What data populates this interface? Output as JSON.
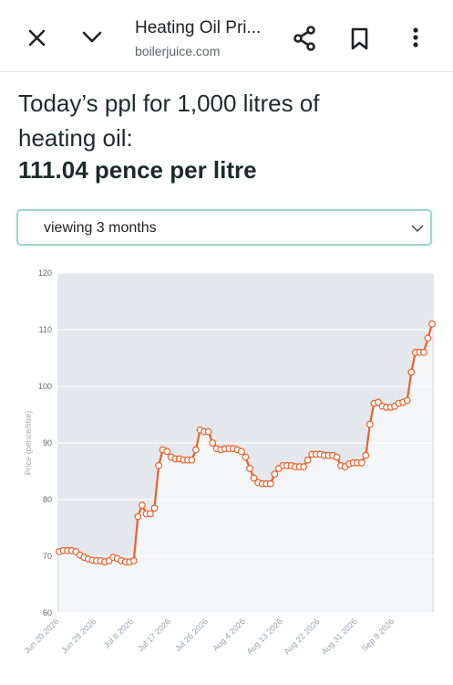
{
  "app_bar": {
    "title": "Heating Oil Pri...",
    "url": "boilerjuice.com"
  },
  "page": {
    "heading": "Today’s ppl for 1,000 litres of heating oil:",
    "price": "111.04 pence per litre",
    "dropdown": "viewing 3 months"
  },
  "chart_data": {
    "type": "line",
    "y_label": "Price (pence/litre)",
    "categories": [
      "Jun 20 2026",
      null,
      null,
      null,
      null,
      null,
      null,
      null,
      null,
      "Jun 29 2026",
      null,
      null,
      null,
      null,
      null,
      null,
      null,
      null,
      "Jul 8 2026",
      null,
      null,
      null,
      null,
      null,
      null,
      null,
      null,
      "Jul 17 2026",
      null,
      null,
      null,
      null,
      null,
      null,
      null,
      null,
      "Jul 26 2026",
      null,
      null,
      null,
      null,
      null,
      null,
      null,
      null,
      "Aug 4 2026",
      null,
      null,
      null,
      null,
      null,
      null,
      null,
      null,
      "Aug 13 2026",
      null,
      null,
      null,
      null,
      null,
      null,
      null,
      null,
      "Aug 22 2026",
      null,
      null,
      null,
      null,
      null,
      null,
      null,
      null,
      "Aug 31 2026",
      null,
      null,
      null,
      null,
      null,
      null,
      null,
      null,
      "Sep 9 2026",
      null,
      null,
      null,
      null,
      null,
      null,
      null,
      null,
      null
    ],
    "values": [
      70.8,
      71,
      71,
      71,
      70.8,
      70.2,
      69.8,
      69.5,
      69.3,
      69.2,
      69.2,
      69,
      69.2,
      69.8,
      69.6,
      69.2,
      69,
      69,
      69.2,
      77,
      79,
      77.5,
      77.5,
      78.5,
      86,
      88.8,
      88.5,
      87.5,
      87.2,
      87.2,
      87,
      87,
      87,
      88.8,
      92.3,
      92,
      92,
      90,
      89,
      88.8,
      89,
      89,
      89,
      88.8,
      88.5,
      87.5,
      85.5,
      83.8,
      83,
      82.8,
      82.8,
      82.8,
      84.5,
      85.5,
      86,
      86,
      86,
      85.8,
      85.8,
      85.8,
      87,
      88,
      88,
      88,
      87.8,
      87.8,
      87.8,
      87.5,
      86,
      85.8,
      86.3,
      86.5,
      86.5,
      86.5,
      87.8,
      93.3,
      97,
      97.2,
      96.5,
      96.3,
      96.3,
      96.5,
      97,
      97.2,
      97.5,
      102.5,
      106,
      106,
      106,
      108.5,
      111
    ],
    "color": "#e8612c",
    "ylim": [
      60,
      120
    ],
    "yticks": [
      60,
      70,
      80,
      90,
      100,
      110,
      120
    ],
    "grid": true
  }
}
